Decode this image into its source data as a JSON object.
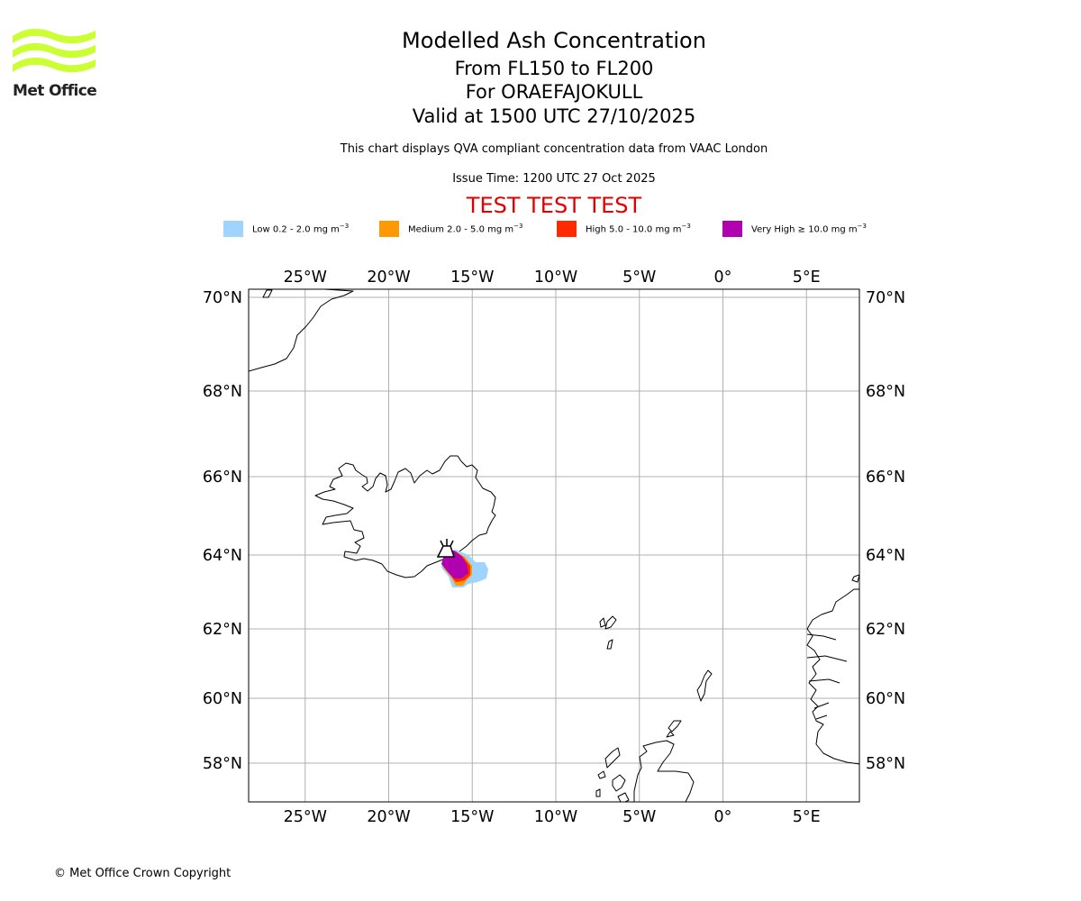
{
  "brand": {
    "logo_text": "Met Office"
  },
  "header": {
    "title": "Modelled Ash Concentration",
    "levels": "From FL150 to FL200",
    "volcano": "For ORAEFAJOKULL",
    "valid": "Valid at 1500 UTC 27/10/2025",
    "description": "This chart displays QVA compliant concentration data from VAAC London",
    "issue_time": "Issue Time: 1200 UTC 27 Oct 2025",
    "test_banner": "TEST TEST TEST",
    "test_color": "#e00000"
  },
  "legend": [
    {
      "label": "Low 0.2 - 2.0 mg m",
      "sym": "",
      "unit_exp": "−3",
      "color": "#a0d4ff"
    },
    {
      "label": "Medium 2.0 - 5.0 mg m",
      "sym": "",
      "unit_exp": "−3",
      "color": "#ff9900"
    },
    {
      "label": "High 5.0 - 10.0 mg m",
      "sym": "",
      "unit_exp": "−3",
      "color": "#ff2a00"
    },
    {
      "label": "Very High",
      "sym": "≥",
      "rest": "10.0 mg m",
      "unit_exp": "−3",
      "color": "#b000b0"
    }
  ],
  "map": {
    "lon_labels": [
      "25°W",
      "20°W",
      "15°W",
      "10°W",
      "5°W",
      "0°",
      "5°E"
    ],
    "lon_values": [
      -25,
      -20,
      -15,
      -10,
      -5,
      0,
      5
    ],
    "lat_labels": [
      "70°N",
      "68°N",
      "66°N",
      "64°N",
      "62°N",
      "60°N",
      "58°N"
    ],
    "lat_values": [
      70,
      68,
      66,
      64,
      62,
      60,
      58
    ],
    "volcano_marker": "volcano-icon",
    "ash_levels": [
      "low",
      "medium",
      "high",
      "very high"
    ]
  },
  "footer": {
    "copyright": "© Met Office Crown Copyright"
  }
}
